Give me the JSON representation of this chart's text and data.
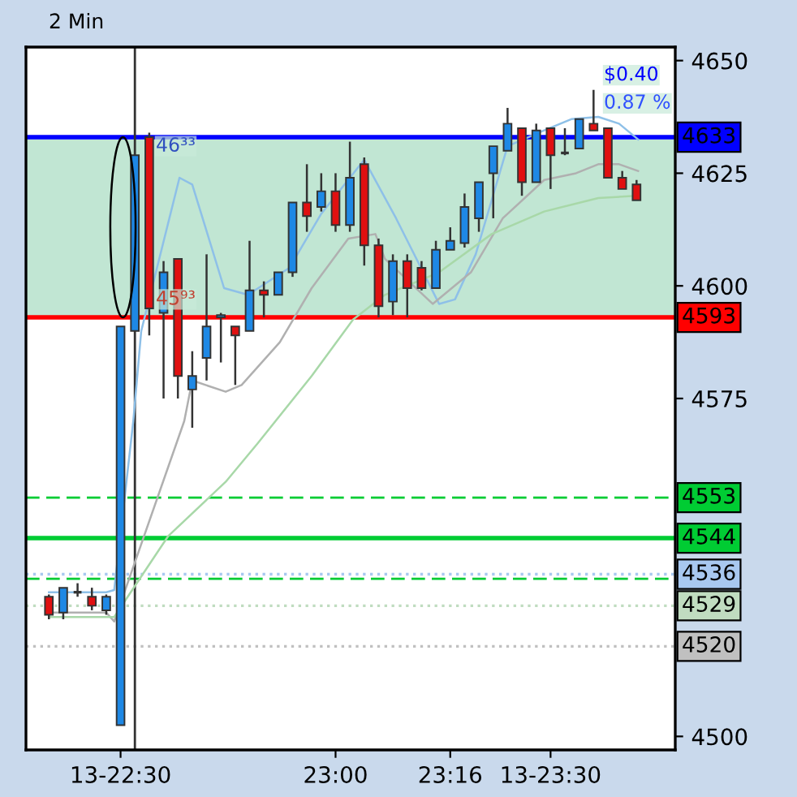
{
  "chart_data": {
    "type": "candlestick",
    "title": "2 Min",
    "x": [
      22.3333,
      22.3667,
      22.4,
      22.4333,
      22.4667,
      22.5,
      22.5333,
      22.5667,
      22.6,
      22.6333,
      22.6667,
      22.7,
      22.7333,
      22.7667,
      22.8,
      22.8333,
      22.8667,
      22.9,
      22.9333,
      22.9667,
      23.0,
      23.0333,
      23.0667,
      23.1,
      23.1333,
      23.1667,
      23.2,
      23.2333,
      23.2667,
      23.3,
      23.3333,
      23.3667,
      23.4,
      23.4333,
      23.4667,
      23.5,
      23.5333,
      23.5667,
      23.6,
      23.6333,
      23.6667,
      23.7
    ],
    "ohlc": [
      [
        4531,
        4531.5,
        4526,
        4527
      ],
      [
        4527.5,
        4533,
        4526,
        4533
      ],
      [
        4532,
        4534,
        4531,
        4532
      ],
      [
        4531,
        4533,
        4528,
        4529
      ],
      [
        4528,
        4531.5,
        4527,
        4531
      ],
      [
        4502.5,
        4591,
        4502.5,
        4591
      ],
      [
        4590,
        4629,
        4590,
        4629
      ],
      [
        4633,
        4634,
        4589,
        4595
      ],
      [
        4594,
        4605.5,
        4575,
        4603
      ],
      [
        4606,
        4606,
        4575,
        4580
      ],
      [
        4577,
        4585.5,
        4568.5,
        4580
      ],
      [
        4584,
        4607,
        4579,
        4591
      ],
      [
        4593,
        4594,
        4583,
        4593.5
      ],
      [
        4591,
        4591,
        4578,
        4589
      ],
      [
        4590,
        4610,
        4590,
        4599
      ],
      [
        4599,
        4601,
        4593,
        4598
      ],
      [
        4598,
        4603,
        4598,
        4603
      ],
      [
        4603,
        4618.5,
        4602,
        4618.5
      ],
      [
        4618.5,
        4627,
        4612,
        4615.5
      ],
      [
        4617.5,
        4625,
        4616.5,
        4621
      ],
      [
        4621,
        4625,
        4612,
        4613.5
      ],
      [
        4613.5,
        4632,
        4612,
        4624
      ],
      [
        4627,
        4628.5,
        4604.5,
        4609
      ],
      [
        4609,
        4610.5,
        4593,
        4595.5
      ],
      [
        4596.5,
        4607,
        4593.5,
        4605.5
      ],
      [
        4605.5,
        4607,
        4593,
        4599.5
      ],
      [
        4604,
        4605.5,
        4599,
        4599.5
      ],
      [
        4599.5,
        4610,
        4599.5,
        4608
      ],
      [
        4608,
        4613,
        4608,
        4610
      ],
      [
        4609.5,
        4620.5,
        4608.5,
        4617.5
      ],
      [
        4615,
        4623,
        4612,
        4623
      ],
      [
        4625,
        4631,
        4615,
        4631
      ],
      [
        4630,
        4639.5,
        4630,
        4636
      ],
      [
        4635,
        4635,
        4620,
        4623
      ],
      [
        4623,
        4636,
        4623,
        4634.5
      ],
      [
        4635,
        4635,
        4621.5,
        4629
      ],
      [
        4629.5,
        4635,
        4629,
        4629.5
      ],
      [
        4630.5,
        4637,
        4630.5,
        4637
      ],
      [
        4636,
        4643.5,
        4634.5,
        4634.5
      ],
      [
        4635,
        4635,
        4624,
        4624
      ],
      [
        4624,
        4625.5,
        4621.5,
        4621.5
      ],
      [
        4622.5,
        4623.5,
        4619,
        4619
      ]
    ],
    "colors": [
      "#e01010",
      "#1e88e5",
      "#333333",
      "#e01010",
      "#1e88e5",
      "#1e88e5",
      "#1e88e5",
      "#e01010",
      "#1e88e5",
      "#e01010",
      "#1e88e5",
      "#1e88e5",
      "#1e88e5",
      "#e01010",
      "#1e88e5",
      "#e01010",
      "#1e88e5",
      "#1e88e5",
      "#e01010",
      "#1e88e5",
      "#e01010",
      "#1e88e5",
      "#e01010",
      "#e01010",
      "#1e88e5",
      "#e01010",
      "#e01010",
      "#1e88e5",
      "#1e88e5",
      "#1e88e5",
      "#1e88e5",
      "#1e88e5",
      "#1e88e5",
      "#e01010",
      "#1e88e5",
      "#e01010",
      "#333333",
      "#1e88e5",
      "#e01010",
      "#e01010",
      "#e01010",
      "#e01010"
    ],
    "series": [
      {
        "type": "line",
        "color": "#8ec0e8",
        "x": [
          22.3333,
          22.4667,
          22.4852,
          22.5296,
          22.5481,
          22.637,
          22.6667,
          22.7407,
          22.7963,
          22.8926,
          22.9667,
          23.0667,
          23.1407,
          23.2407,
          23.2778,
          23.3259,
          23.363,
          23.4,
          23.4852,
          23.5481,
          23.6111,
          23.6593,
          23.7037
        ],
        "values": [
          4532,
          4532,
          4532.5,
          4570,
          4590,
          4624,
          4622.5,
          4599.5,
          4598,
          4604,
          4616,
          4628,
          4615,
          4596,
          4597,
          4607,
          4619,
          4631,
          4634.5,
          4637,
          4637.5,
          4636,
          4632.5
        ]
      },
      {
        "type": "line",
        "color": "#b0b0b0",
        "x": [
          22.3333,
          22.4667,
          22.4852,
          22.6481,
          22.6667,
          22.7444,
          22.7815,
          22.8704,
          22.9444,
          23.0296,
          23.0926,
          23.1148,
          23.2259,
          23.3148,
          23.3889,
          23.4852,
          23.5593,
          23.6111,
          23.6593,
          23.7037
        ],
        "values": [
          4527.5,
          4527.5,
          4525.5,
          4570,
          4579,
          4576.5,
          4578,
          4587.5,
          4599.5,
          4610.5,
          4611.5,
          4606,
          4596,
          4603,
          4615,
          4623.5,
          4625,
          4627,
          4627,
          4625.5
        ]
      },
      {
        "type": "line",
        "color": "#a8d8a8",
        "x": [
          22.3333,
          22.4667,
          22.4852,
          22.6111,
          22.7444,
          22.8185,
          22.9444,
          23.0407,
          23.1148,
          23.2407,
          23.363,
          23.4852,
          23.6111,
          23.7037
        ],
        "values": [
          4526.5,
          4526.5,
          4526.5,
          4544.5,
          4556.5,
          4565,
          4580,
          4592.5,
          4598,
          4603,
          4611.5,
          4616.5,
          4619.5,
          4620
        ]
      }
    ],
    "xlim": [
      22.28,
      23.79
    ],
    "ylim": [
      4497,
      4653
    ],
    "xticks": [
      {
        "value": 22.5,
        "label": "13-22:30"
      },
      {
        "value": 23.0,
        "label": "23:00"
      },
      {
        "value": 23.2667,
        "label": "23:16"
      },
      {
        "value": 23.5,
        "label": "13-23:30"
      }
    ],
    "yticks": [
      4500,
      4575,
      4600,
      4625,
      4650
    ],
    "bands": [
      {
        "axis": "y",
        "from": 4593,
        "to": 4633,
        "color": "#b2e0c8"
      }
    ],
    "ref_lines": [
      {
        "axis": "y",
        "value": 4633,
        "label": "4633",
        "color": "#0000ff",
        "line_style": "solid"
      },
      {
        "axis": "y",
        "value": 4593,
        "label": "4593",
        "color": "#ff0000",
        "line_style": "solid"
      },
      {
        "axis": "y",
        "value": 4553,
        "label": "4553",
        "color": "#00cc33",
        "line_style": "dashed"
      },
      {
        "axis": "y",
        "value": 4544,
        "label": "4544",
        "color": "#00cc33",
        "line_style": "solid"
      },
      {
        "axis": "y",
        "value": 4535,
        "color": "#00cc33",
        "line_style": "dashed"
      },
      {
        "axis": "y",
        "value": 4536,
        "label": "4536",
        "color": "#a8c8f0",
        "line_style": "dotted"
      },
      {
        "axis": "y",
        "value": 4529,
        "label": "4529",
        "color": "#c0dcc0",
        "line_style": "dotted"
      },
      {
        "axis": "y",
        "value": 4520,
        "label": "4520",
        "color": "#c0c0c0",
        "line_style": "dotted"
      },
      {
        "axis": "x",
        "value": 22.5333,
        "color": "#333333",
        "line_style": "solid"
      }
    ],
    "annotations": [
      {
        "text": "46³³",
        "y": 4631
      },
      {
        "text": "45⁹³",
        "y": 4597
      },
      "$0.40",
      "0.87 %"
    ],
    "grid": false,
    "legend": false
  }
}
